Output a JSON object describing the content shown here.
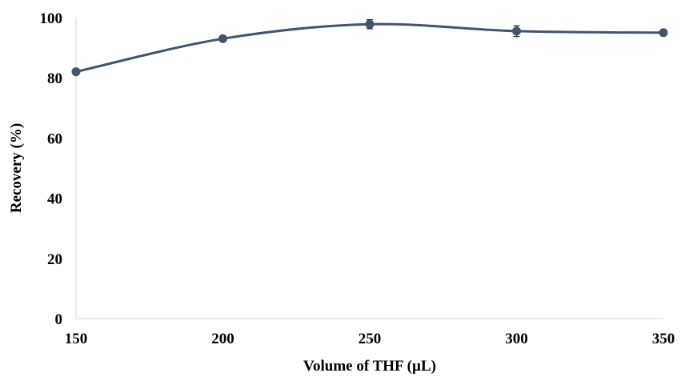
{
  "chart_data": {
    "type": "line",
    "title": "",
    "xlabel": "Volume of THF (µL)",
    "ylabel": "Recovery (%)",
    "x": [
      150,
      200,
      250,
      300,
      350
    ],
    "x_tick_labels": [
      "150",
      "200",
      "250",
      "300",
      "350"
    ],
    "xlim": [
      150,
      350
    ],
    "y_ticks": [
      0,
      20,
      40,
      60,
      80,
      100
    ],
    "y_tick_labels": [
      "0",
      "20",
      "40",
      "60",
      "80",
      "100"
    ],
    "ylim": [
      0,
      100
    ],
    "grid": false,
    "legend": "none",
    "series": [
      {
        "values": [
          82.0,
          93.0,
          97.8,
          95.5,
          95.0
        ],
        "error": [
          0.6,
          0.6,
          1.5,
          1.8,
          0.3
        ],
        "color": "#44546a",
        "marker": "circle",
        "smooth": true
      }
    ]
  }
}
